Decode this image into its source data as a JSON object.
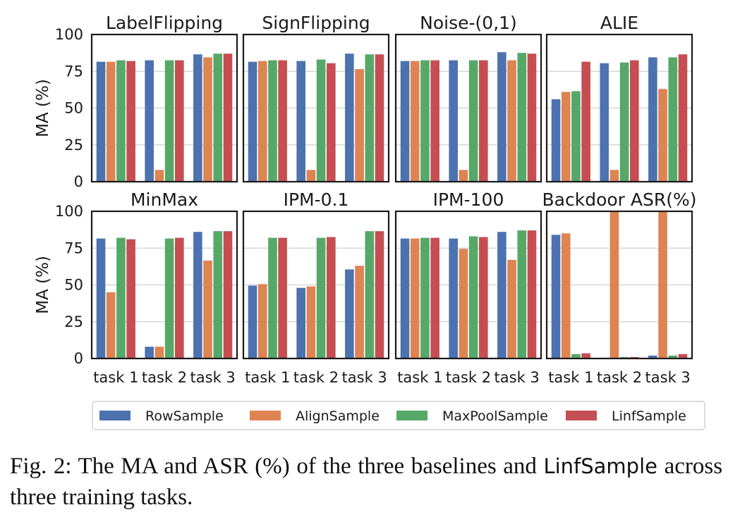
{
  "caption": {
    "prefix": "Fig. 2: The MA and ASR (%) of the three baselines and",
    "method": "LinfSample",
    "suffix": "across three training tasks."
  },
  "chart_data": {
    "type": "bar",
    "layout": "2x4 grid of subplots",
    "categories": [
      "task 1",
      "task 2",
      "task 3"
    ],
    "ylim": [
      0,
      100
    ],
    "yticks": [
      0,
      25,
      50,
      75,
      100
    ],
    "ylabel": "MA (%)",
    "grid": "horizontal",
    "legend": {
      "placement": "bottom",
      "entries": [
        {
          "name": "RowSample",
          "color": "#4c72b0"
        },
        {
          "name": "AlignSample",
          "color": "#dd8452"
        },
        {
          "name": "MaxPoolSample",
          "color": "#55a868"
        },
        {
          "name": "LinfSample",
          "color": "#c44e52"
        }
      ]
    },
    "subplots": [
      {
        "title": "LabelFlipping",
        "values": [
          [
            81.5,
            82.5,
            86.5
          ],
          [
            81.5,
            8,
            84.5
          ],
          [
            82.5,
            82.5,
            87
          ],
          [
            82,
            82.5,
            87
          ]
        ]
      },
      {
        "title": "SignFlipping",
        "values": [
          [
            81.5,
            82,
            87
          ],
          [
            82,
            8,
            76.5
          ],
          [
            82.5,
            83,
            86.5
          ],
          [
            82.5,
            80.5,
            86.5
          ]
        ]
      },
      {
        "title": "Noise-(0,1)",
        "values": [
          [
            82,
            82.5,
            88
          ],
          [
            82,
            8,
            82.5
          ],
          [
            82.5,
            82.5,
            87.5
          ],
          [
            82.5,
            82.5,
            87
          ]
        ]
      },
      {
        "title": "ALIE",
        "values": [
          [
            56,
            80.5,
            84.5
          ],
          [
            61,
            8,
            63
          ],
          [
            61.5,
            81,
            84.5
          ],
          [
            81.5,
            82.5,
            86.5
          ]
        ]
      },
      {
        "title": "MinMax",
        "values": [
          [
            81.5,
            8,
            86
          ],
          [
            45,
            8,
            66.5
          ],
          [
            82,
            81.5,
            86.5
          ],
          [
            81,
            82,
            86.5
          ]
        ]
      },
      {
        "title": "IPM-0.1",
        "values": [
          [
            49.5,
            48,
            60.5
          ],
          [
            50.5,
            49,
            63
          ],
          [
            82,
            82,
            86.5
          ],
          [
            82,
            82.5,
            86.5
          ]
        ]
      },
      {
        "title": "IPM-100",
        "values": [
          [
            81.5,
            81.5,
            86
          ],
          [
            81.5,
            74.5,
            67
          ],
          [
            82,
            83,
            87
          ],
          [
            82,
            82.5,
            87
          ]
        ]
      },
      {
        "title": "Backdoor ASR(%)",
        "values": [
          [
            84,
            0.5,
            2
          ],
          [
            85,
            100,
            100
          ],
          [
            3,
            1,
            2
          ],
          [
            3.5,
            1,
            3
          ]
        ]
      }
    ]
  }
}
